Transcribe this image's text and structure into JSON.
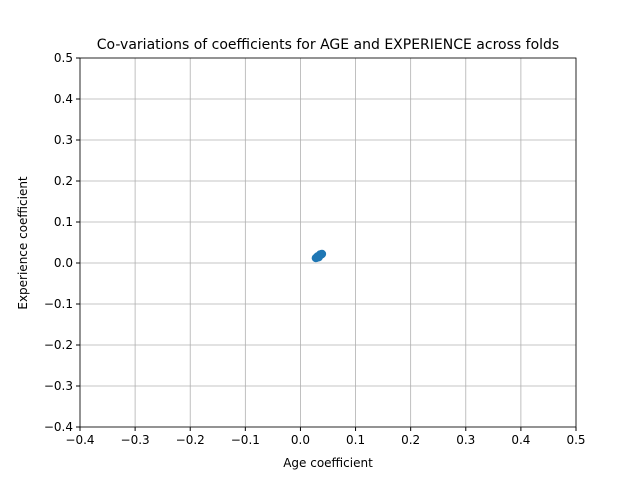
{
  "chart_data": {
    "type": "scatter",
    "title": "Co-variations of coefficients for AGE and EXPERIENCE across folds",
    "x_label": "Age coefficient",
    "y_label": "Experience coefficient",
    "x": [
      0.028,
      0.031,
      0.033,
      0.035,
      0.037,
      0.039,
      0.03,
      0.034,
      0.036,
      0.032
    ],
    "y": [
      0.012,
      0.016,
      0.014,
      0.019,
      0.02,
      0.022,
      0.013,
      0.017,
      0.021,
      0.015
    ],
    "color": "#1f77b4",
    "xlim": [
      -0.4,
      0.5
    ],
    "ylim": [
      -0.4,
      0.5
    ],
    "xticks": [
      {
        "value": -0.4,
        "label": "−0.4"
      },
      {
        "value": -0.3,
        "label": "−0.3"
      },
      {
        "value": -0.2,
        "label": "−0.2"
      },
      {
        "value": -0.1,
        "label": "−0.1"
      },
      {
        "value": 0,
        "label": "0.0"
      },
      0.1,
      0.2,
      0.3,
      0.4,
      0.5
    ],
    "yticks": [
      {
        "value": -0.4,
        "label": "−0.4"
      },
      {
        "value": -0.3,
        "label": "−0.3"
      },
      {
        "value": -0.2,
        "label": "−0.2"
      },
      {
        "value": -0.1,
        "label": "−0.1"
      },
      {
        "value": 0,
        "label": "0.0"
      },
      0.1,
      0.2,
      0.3,
      0.4,
      0.5
    ],
    "grid": true
  }
}
